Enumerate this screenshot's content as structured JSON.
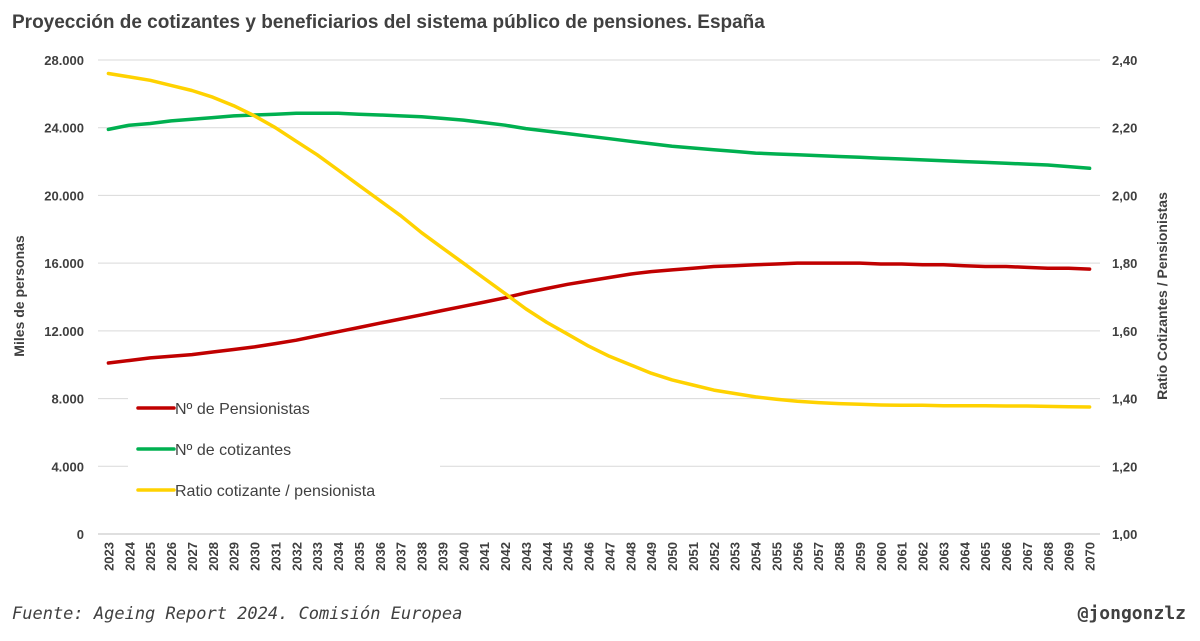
{
  "title": "Proyección de cotizantes y beneficiarios del sistema público de pensiones. España",
  "source": "Fuente: Ageing Report 2024. Comisión Europea",
  "handle": "@jongonzlz",
  "chart_data": {
    "type": "line",
    "xlabel": "",
    "ylabel_left": "Miles de personas",
    "ylabel_right": "Ratio Cotizantes / Pensionistas",
    "ylim_left": [
      0,
      28000
    ],
    "ylim_right": [
      1.0,
      2.4
    ],
    "yticks_left": [
      "0",
      "4.000",
      "8.000",
      "12.000",
      "16.000",
      "20.000",
      "24.000",
      "28.000"
    ],
    "yticks_right": [
      "1,00",
      "1,20",
      "1,40",
      "1,60",
      "1,80",
      "2,00",
      "2,20",
      "2,40"
    ],
    "grid": true,
    "legend_position": "bottom-left",
    "categories": [
      "2023",
      "2024",
      "2025",
      "2026",
      "2027",
      "2028",
      "2029",
      "2030",
      "2031",
      "2032",
      "2033",
      "2034",
      "2035",
      "2036",
      "2037",
      "2038",
      "2039",
      "2040",
      "2041",
      "2042",
      "2043",
      "2044",
      "2045",
      "2046",
      "2047",
      "2048",
      "2049",
      "2050",
      "2051",
      "2052",
      "2053",
      "2054",
      "2055",
      "2056",
      "2057",
      "2058",
      "2059",
      "2060",
      "2061",
      "2062",
      "2063",
      "2064",
      "2065",
      "2066",
      "2067",
      "2068",
      "2069",
      "2070"
    ],
    "series": [
      {
        "name": "Nº de Pensionistas",
        "axis": "left",
        "color": "#C00000",
        "values": [
          10100,
          10250,
          10400,
          10500,
          10600,
          10750,
          10900,
          11050,
          11250,
          11450,
          11700,
          11950,
          12200,
          12450,
          12700,
          12950,
          13200,
          13450,
          13700,
          13950,
          14250,
          14500,
          14750,
          14950,
          15150,
          15350,
          15500,
          15600,
          15700,
          15800,
          15850,
          15900,
          15950,
          16000,
          16000,
          16000,
          16000,
          15950,
          15950,
          15900,
          15900,
          15850,
          15800,
          15800,
          15750,
          15700,
          15700,
          15650
        ]
      },
      {
        "name": "Nº de cotizantes",
        "axis": "left",
        "color": "#00B050",
        "values": [
          23900,
          24150,
          24250,
          24400,
          24500,
          24600,
          24700,
          24750,
          24800,
          24850,
          24850,
          24850,
          24800,
          24750,
          24700,
          24650,
          24550,
          24450,
          24300,
          24150,
          23950,
          23800,
          23650,
          23500,
          23350,
          23200,
          23050,
          22900,
          22800,
          22700,
          22600,
          22500,
          22450,
          22400,
          22350,
          22300,
          22250,
          22200,
          22150,
          22100,
          22050,
          22000,
          21950,
          21900,
          21850,
          21800,
          21700,
          21600
        ]
      },
      {
        "name": "Ratio cotizante / pensionista",
        "axis": "right",
        "color": "#FFD200",
        "values": [
          2.36,
          2.35,
          2.34,
          2.325,
          2.31,
          2.29,
          2.265,
          2.235,
          2.2,
          2.16,
          2.12,
          2.075,
          2.03,
          1.985,
          1.94,
          1.89,
          1.845,
          1.8,
          1.755,
          1.71,
          1.665,
          1.625,
          1.59,
          1.555,
          1.525,
          1.5,
          1.475,
          1.455,
          1.44,
          1.425,
          1.415,
          1.405,
          1.398,
          1.392,
          1.388,
          1.385,
          1.383,
          1.381,
          1.38,
          1.38,
          1.379,
          1.379,
          1.379,
          1.378,
          1.378,
          1.377,
          1.376,
          1.375
        ]
      }
    ]
  }
}
